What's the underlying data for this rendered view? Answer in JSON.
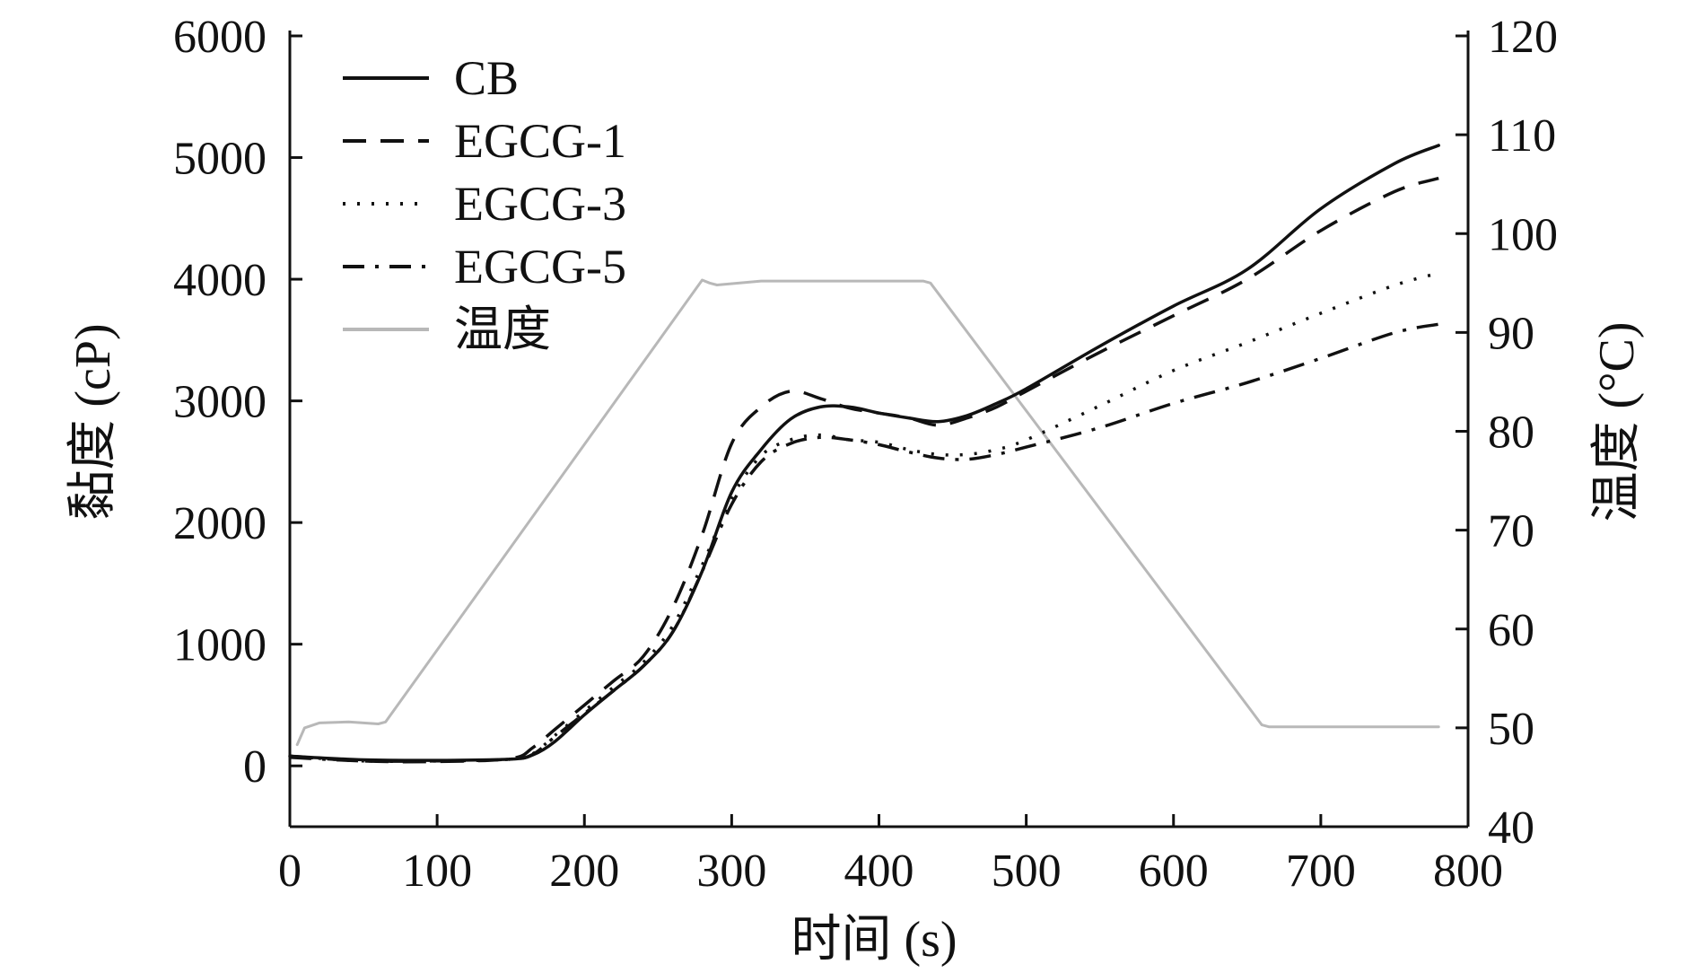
{
  "chart_data": {
    "type": "line",
    "xlabel": "时间 (s)",
    "ylabel": "黏度 (cP)",
    "y2label": "温度 (°C)",
    "xlim": [
      0,
      800
    ],
    "ylim": [
      -500,
      6000
    ],
    "y2lim": [
      40,
      120
    ],
    "xticks": [
      0,
      100,
      200,
      300,
      400,
      500,
      600,
      700,
      800
    ],
    "yticks": [
      0,
      1000,
      2000,
      3000,
      4000,
      5000,
      6000
    ],
    "y2ticks": [
      40,
      50,
      60,
      70,
      80,
      90,
      100,
      110,
      120
    ],
    "grid": false,
    "legend_position": "top-left",
    "series": [
      {
        "name": "CB",
        "axis": "left",
        "style": "solid",
        "color": "#111111",
        "x": [
          0,
          50,
          100,
          150,
          165,
          180,
          200,
          220,
          240,
          260,
          280,
          300,
          320,
          340,
          360,
          380,
          400,
          420,
          440,
          460,
          480,
          500,
          550,
          600,
          650,
          700,
          750,
          780
        ],
        "y": [
          80,
          50,
          45,
          55,
          90,
          200,
          420,
          620,
          820,
          1100,
          1600,
          2250,
          2600,
          2850,
          2950,
          2950,
          2900,
          2860,
          2830,
          2880,
          2980,
          3100,
          3450,
          3780,
          4080,
          4580,
          4950,
          5100
        ]
      },
      {
        "name": "EGCG-1",
        "axis": "left",
        "style": "dashed",
        "color": "#111111",
        "x": [
          0,
          50,
          100,
          150,
          165,
          180,
          200,
          220,
          240,
          260,
          280,
          300,
          320,
          340,
          360,
          380,
          400,
          420,
          440,
          460,
          480,
          500,
          550,
          600,
          650,
          700,
          750,
          780
        ],
        "y": [
          80,
          40,
          35,
          60,
          150,
          300,
          500,
          700,
          900,
          1300,
          1900,
          2650,
          2950,
          3080,
          3020,
          2940,
          2900,
          2860,
          2800,
          2860,
          2950,
          3080,
          3400,
          3700,
          4000,
          4400,
          4720,
          4830
        ]
      },
      {
        "name": "EGCG-3",
        "axis": "left",
        "style": "dotted",
        "color": "#111111",
        "x": [
          0,
          50,
          100,
          150,
          165,
          180,
          200,
          220,
          240,
          260,
          280,
          300,
          320,
          340,
          360,
          380,
          400,
          420,
          440,
          460,
          480,
          500,
          550,
          600,
          650,
          700,
          750,
          780
        ],
        "y": [
          80,
          40,
          40,
          55,
          100,
          250,
          450,
          650,
          850,
          1150,
          1650,
          2200,
          2550,
          2680,
          2720,
          2680,
          2660,
          2600,
          2560,
          2560,
          2600,
          2680,
          2960,
          3250,
          3480,
          3720,
          3950,
          4050
        ]
      },
      {
        "name": "EGCG-5",
        "axis": "left",
        "style": "dashdot",
        "color": "#111111",
        "x": [
          0,
          50,
          100,
          150,
          165,
          180,
          200,
          220,
          240,
          260,
          280,
          300,
          320,
          340,
          360,
          380,
          400,
          420,
          440,
          460,
          480,
          500,
          550,
          600,
          650,
          700,
          750,
          780
        ],
        "y": [
          70,
          40,
          40,
          55,
          95,
          240,
          430,
          620,
          820,
          1100,
          1600,
          2150,
          2500,
          2650,
          2700,
          2680,
          2640,
          2580,
          2530,
          2520,
          2560,
          2620,
          2780,
          2980,
          3150,
          3350,
          3560,
          3630
        ]
      },
      {
        "name": "温度",
        "axis": "right",
        "style": "solid",
        "color": "#b8b8b8",
        "x": [
          5,
          10,
          20,
          40,
          60,
          65,
          280,
          285,
          290,
          320,
          430,
          435,
          660,
          665,
          700,
          780
        ],
        "y": [
          48.3,
          50.0,
          50.5,
          50.6,
          50.4,
          50.6,
          95.3,
          95.0,
          94.8,
          95.2,
          95.2,
          95.0,
          50.3,
          50.1,
          50.1,
          50.1
        ]
      }
    ]
  }
}
